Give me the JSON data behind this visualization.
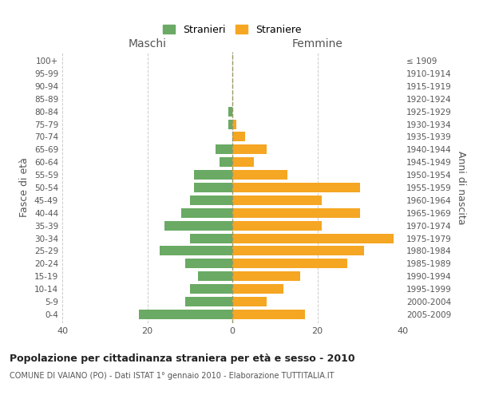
{
  "age_groups": [
    "100+",
    "95-99",
    "90-94",
    "85-89",
    "80-84",
    "75-79",
    "70-74",
    "65-69",
    "60-64",
    "55-59",
    "50-54",
    "45-49",
    "40-44",
    "35-39",
    "30-34",
    "25-29",
    "20-24",
    "15-19",
    "10-14",
    "5-9",
    "0-4"
  ],
  "birth_years": [
    "≤ 1909",
    "1910-1914",
    "1915-1919",
    "1920-1924",
    "1925-1929",
    "1930-1934",
    "1935-1939",
    "1940-1944",
    "1945-1949",
    "1950-1954",
    "1955-1959",
    "1960-1964",
    "1965-1969",
    "1970-1974",
    "1975-1979",
    "1980-1984",
    "1985-1989",
    "1990-1994",
    "1995-1999",
    "2000-2004",
    "2005-2009"
  ],
  "maschi": [
    0,
    0,
    0,
    0,
    1,
    1,
    0,
    4,
    3,
    9,
    9,
    10,
    12,
    16,
    10,
    17,
    11,
    8,
    10,
    11,
    22
  ],
  "femmine": [
    0,
    0,
    0,
    0,
    0,
    1,
    3,
    8,
    5,
    13,
    30,
    21,
    30,
    21,
    38,
    31,
    27,
    16,
    12,
    8,
    17
  ],
  "color_maschi": "#6aaa64",
  "color_femmine": "#f5a623",
  "title": "Popolazione per cittadinanza straniera per età e sesso - 2010",
  "subtitle": "COMUNE DI VAIANO (PO) - Dati ISTAT 1° gennaio 2010 - Elaborazione TUTTITALIA.IT",
  "xlabel_left": "Maschi",
  "xlabel_right": "Femmine",
  "ylabel_left": "Fasce di età",
  "ylabel_right": "Anni di nascita",
  "legend_maschi": "Stranieri",
  "legend_femmine": "Straniere",
  "xlim": 40,
  "background_color": "#ffffff",
  "grid_color": "#cccccc"
}
